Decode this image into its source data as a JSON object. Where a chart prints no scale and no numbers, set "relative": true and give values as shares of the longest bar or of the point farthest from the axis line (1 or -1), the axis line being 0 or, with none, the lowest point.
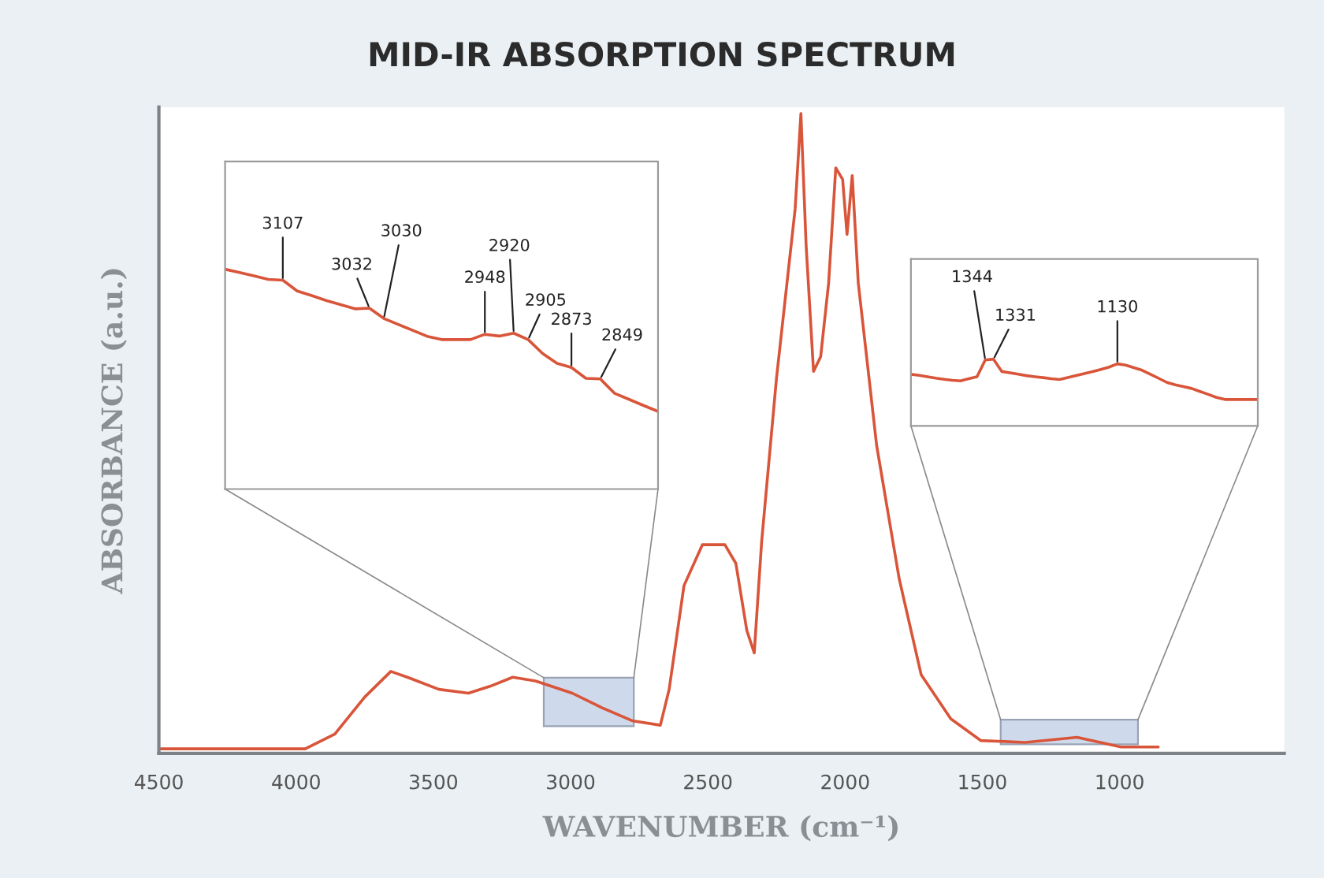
{
  "chart_data": [
    {
      "type": "line",
      "title": "MID-IR ABSORPTION SPECTRUM",
      "xlabel": "WAVENUMBER (cm⁻¹)",
      "ylabel": "ABSORBANCE (a.u.)",
      "relative": true,
      "grid": false,
      "legend": false,
      "xlim": [
        4500,
        400
      ],
      "xticks": [
        4500,
        4000,
        3500,
        3000,
        2500,
        2000,
        1500,
        1000
      ],
      "series": [
        {
          "color": "#d9553a",
          "x": [
            4494,
            3967,
            3859,
            3750,
            3655,
            3589,
            3480,
            3372,
            3292,
            3211,
            3128,
            2994,
            2885,
            2776,
            2673,
            2641,
            2587,
            2520,
            2438,
            2398,
            2358,
            2331,
            2304,
            2250,
            2182,
            2161,
            2142,
            2115,
            2089,
            2060,
            2034,
            2009,
            1993,
            1974,
            1952,
            1885,
            1803,
            1723,
            1615,
            1506,
            1344,
            1155,
            995,
            859
          ],
          "values": [
            0.007,
            0.007,
            0.03,
            0.088,
            0.128,
            0.118,
            0.1,
            0.094,
            0.105,
            0.119,
            0.113,
            0.094,
            0.071,
            0.051,
            0.044,
            0.1,
            0.262,
            0.326,
            0.326,
            0.297,
            0.192,
            0.157,
            0.331,
            0.586,
            0.851,
            1.0,
            0.794,
            0.597,
            0.62,
            0.735,
            0.915,
            0.897,
            0.811,
            0.903,
            0.735,
            0.481,
            0.273,
            0.123,
            0.054,
            0.02,
            0.017,
            0.025,
            0.01,
            0.01
          ]
        }
      ]
    },
    {
      "type": "line",
      "relative": true,
      "categories": [
        null,
        null,
        null,
        null,
        null,
        null,
        null,
        null,
        null,
        null,
        null,
        null,
        null,
        null,
        null,
        null,
        null,
        null,
        null,
        null,
        null,
        null,
        null,
        null,
        null,
        null,
        null,
        null,
        null,
        null,
        null
      ],
      "series": [
        {
          "color": "#d9553a",
          "values": [
            1.0,
            0.985,
            0.97,
            0.954,
            0.95,
            0.901,
            0.88,
            0.858,
            0.839,
            0.82,
            0.823,
            0.776,
            0.749,
            0.722,
            0.695,
            0.68,
            0.68,
            0.68,
            0.704,
            0.696,
            0.709,
            0.68,
            0.617,
            0.572,
            0.553,
            0.504,
            0.501,
            0.435,
            0.408,
            0.38,
            0.353
          ]
        }
      ],
      "annotations": [
        "3107",
        "3032",
        "3030",
        "2948",
        "2920",
        "2905",
        "2873",
        "2849"
      ]
    },
    {
      "type": "line",
      "relative": true,
      "categories": [
        null,
        null,
        null,
        null,
        null,
        null,
        null,
        null,
        null,
        null,
        null,
        null,
        null,
        null,
        null,
        null,
        null,
        null,
        null,
        null,
        null,
        null,
        null,
        null,
        null,
        null,
        null,
        null,
        null,
        null,
        null,
        null,
        null,
        null,
        null,
        null,
        null,
        null,
        null,
        null,
        null,
        null,
        null
      ],
      "series": [
        {
          "color": "#d9553a",
          "values": [
            0.773,
            0.757,
            0.736,
            0.715,
            0.698,
            0.682,
            0.674,
            0.706,
            0.735,
            0.986,
            1.0,
            0.814,
            0.794,
            0.773,
            0.752,
            0.736,
            0.722,
            0.707,
            0.695,
            0.724,
            0.753,
            0.782,
            0.812,
            0.846,
            0.88,
            0.929,
            0.909,
            0.871,
            0.833,
            0.774,
            0.712,
            0.65,
            0.614,
            0.588,
            0.56,
            0.515,
            0.471,
            0.426,
            0.395,
            0.395,
            0.395,
            0.395,
            0.395
          ]
        }
      ],
      "annotations": [
        "1344",
        "1331",
        "1130"
      ]
    }
  ]
}
